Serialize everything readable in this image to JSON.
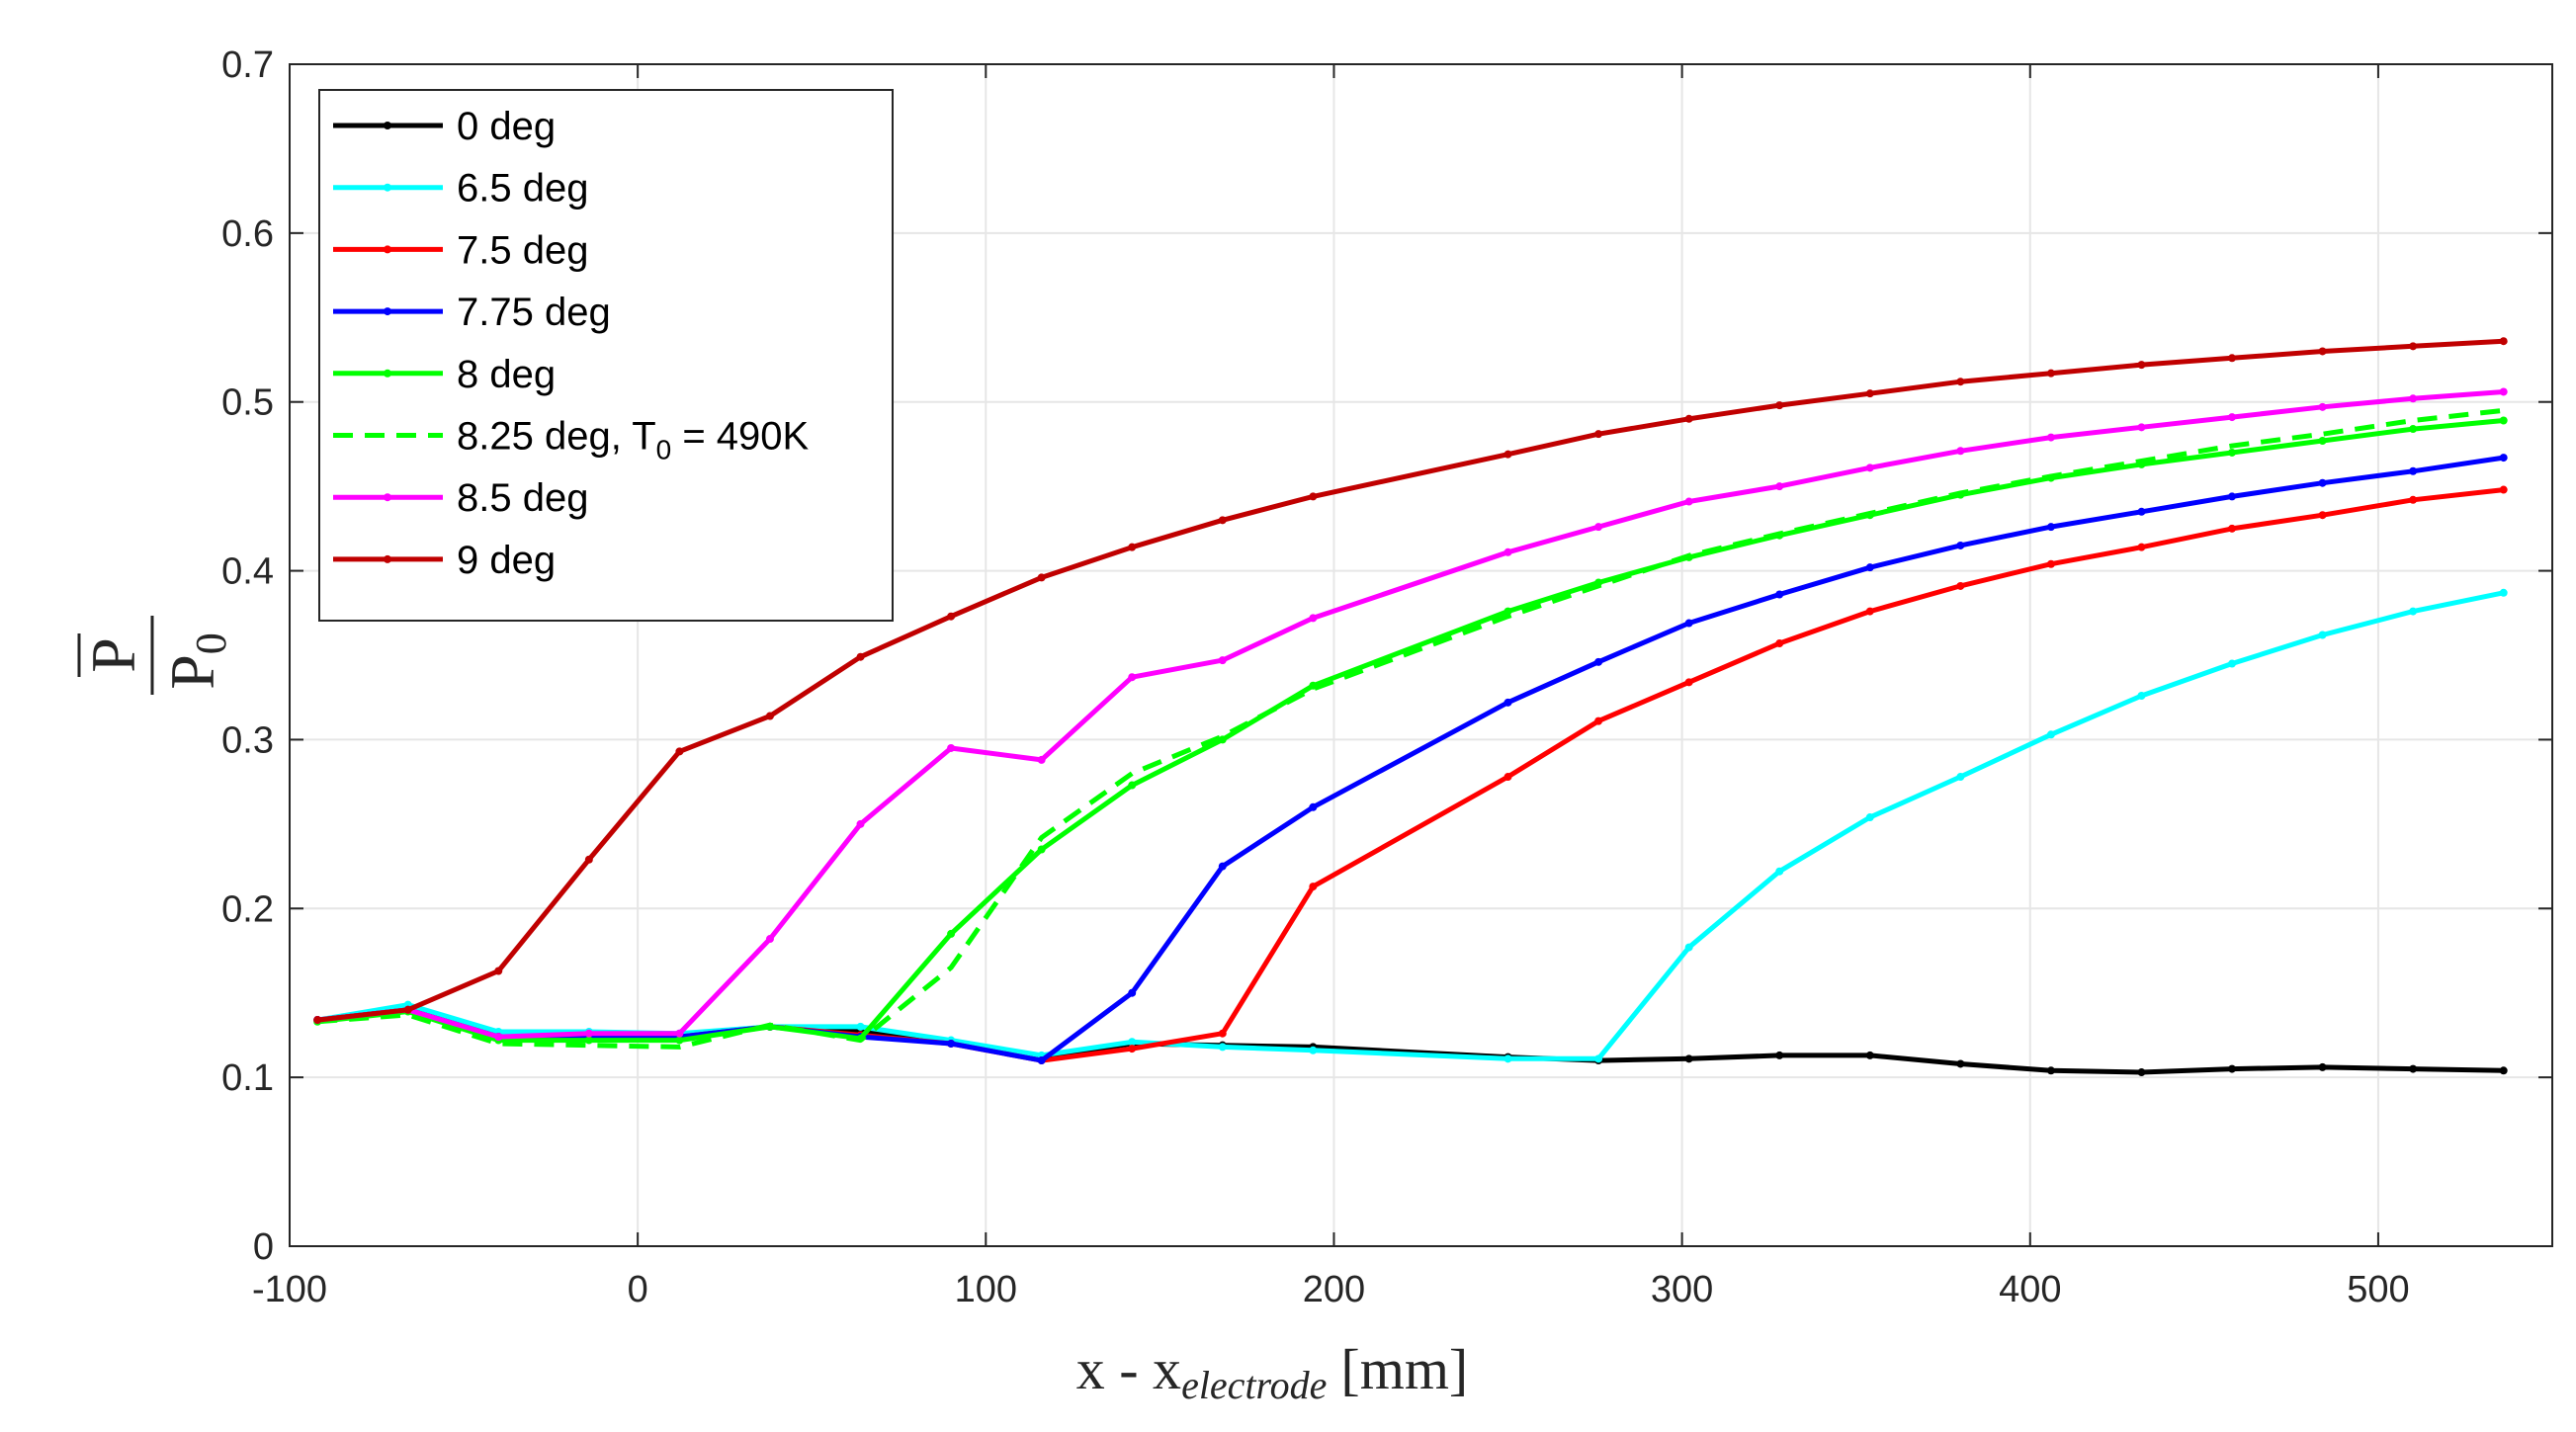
{
  "chart_data": {
    "type": "line",
    "title": "",
    "xlabel": {
      "main": "x - x",
      "subscript": "electrode",
      "unit": "[mm]"
    },
    "ylabel": {
      "numerator": "P",
      "denominator": "P",
      "denominator_subscript": "0"
    },
    "xlim": [
      -100,
      550
    ],
    "ylim": [
      0,
      0.7
    ],
    "xticks": [
      -100,
      0,
      100,
      200,
      300,
      400,
      500
    ],
    "xtick_labels": [
      "-100",
      "0",
      "100",
      "200",
      "300",
      "400",
      "500"
    ],
    "yticks": [
      0,
      0.1,
      0.2,
      0.3,
      0.4,
      0.5,
      0.6,
      0.7
    ],
    "ytick_labels": [
      "0",
      "0.1",
      "0.2",
      "0.3",
      "0.4",
      "0.5",
      "0.6",
      "0.7"
    ],
    "grid": true,
    "legend_position": "top-left",
    "series": [
      {
        "name": "0 deg",
        "color": "#000000",
        "dashed": false,
        "markers": true,
        "x": [
          -92,
          -66,
          -40,
          -14,
          12,
          38,
          64,
          90,
          116,
          142,
          168,
          194,
          250,
          276,
          302,
          328,
          354,
          380,
          406,
          432,
          458,
          484,
          510,
          536
        ],
        "y": [
          0.134,
          0.141,
          0.124,
          0.125,
          0.125,
          0.13,
          0.128,
          0.12,
          0.112,
          0.12,
          0.119,
          0.118,
          0.112,
          0.11,
          0.111,
          0.113,
          0.113,
          0.108,
          0.104,
          0.103,
          0.105,
          0.106,
          0.105,
          0.104
        ]
      },
      {
        "name": "6.5 deg",
        "color": "#00FFFF",
        "dashed": false,
        "markers": true,
        "x": [
          -92,
          -66,
          -40,
          -14,
          12,
          38,
          64,
          90,
          116,
          142,
          168,
          194,
          250,
          276,
          302,
          328,
          354,
          380,
          406,
          432,
          458,
          484,
          510,
          536
        ],
        "y": [
          0.134,
          0.143,
          0.127,
          0.127,
          0.126,
          0.13,
          0.13,
          0.122,
          0.113,
          0.121,
          0.118,
          0.116,
          0.111,
          0.111,
          0.177,
          0.222,
          0.254,
          0.278,
          0.303,
          0.326,
          0.345,
          0.362,
          0.376,
          0.387
        ]
      },
      {
        "name": "7.5 deg",
        "color": "#FF0000",
        "dashed": false,
        "markers": true,
        "x": [
          -92,
          -66,
          -40,
          -14,
          12,
          38,
          64,
          90,
          116,
          142,
          168,
          194,
          250,
          276,
          302,
          328,
          354,
          380,
          406,
          432,
          458,
          484,
          510,
          536
        ],
        "y": [
          0.134,
          0.14,
          0.124,
          0.124,
          0.124,
          0.13,
          0.125,
          0.12,
          0.11,
          0.117,
          0.126,
          0.213,
          0.278,
          0.311,
          0.334,
          0.357,
          0.376,
          0.391,
          0.404,
          0.414,
          0.425,
          0.433,
          0.442,
          0.448
        ]
      },
      {
        "name": "7.75 deg",
        "color": "#0000FF",
        "dashed": false,
        "markers": true,
        "x": [
          -92,
          -66,
          -40,
          -14,
          12,
          38,
          64,
          90,
          116,
          142,
          168,
          194,
          250,
          276,
          302,
          328,
          354,
          380,
          406,
          432,
          458,
          484,
          510,
          536
        ],
        "y": [
          0.134,
          0.14,
          0.124,
          0.124,
          0.124,
          0.13,
          0.124,
          0.12,
          0.11,
          0.15,
          0.225,
          0.26,
          0.322,
          0.346,
          0.369,
          0.386,
          0.402,
          0.415,
          0.426,
          0.435,
          0.444,
          0.452,
          0.459,
          0.467
        ]
      },
      {
        "name": "8 deg",
        "color": "#00FF00",
        "dashed": false,
        "markers": true,
        "x": [
          -92,
          -66,
          -40,
          -14,
          12,
          38,
          64,
          90,
          116,
          142,
          168,
          194,
          250,
          276,
          302,
          328,
          354,
          380,
          406,
          432,
          458,
          484,
          510,
          536
        ],
        "y": [
          0.133,
          0.139,
          0.122,
          0.122,
          0.122,
          0.13,
          0.123,
          0.185,
          0.235,
          0.273,
          0.3,
          0.332,
          0.376,
          0.393,
          0.408,
          0.421,
          0.433,
          0.445,
          0.455,
          0.463,
          0.47,
          0.477,
          0.484,
          0.489
        ]
      },
      {
        "name": "8.25 deg, T",
        "name_subscript": "0",
        "name_suffix": " = 490K",
        "color": "#00FF00",
        "dashed": true,
        "markers": false,
        "x": [
          -92,
          -66,
          -40,
          -14,
          12,
          38,
          64,
          90,
          116,
          142,
          168,
          194,
          250,
          276,
          302,
          328,
          354,
          380,
          406,
          432,
          458,
          484,
          510,
          536
        ],
        "y": [
          0.133,
          0.137,
          0.12,
          0.119,
          0.118,
          0.131,
          0.122,
          0.165,
          0.242,
          0.28,
          0.302,
          0.33,
          0.373,
          0.391,
          0.409,
          0.422,
          0.434,
          0.446,
          0.456,
          0.465,
          0.474,
          0.481,
          0.489,
          0.495
        ]
      },
      {
        "name": "8.5 deg",
        "color": "#FF00FF",
        "dashed": false,
        "markers": true,
        "x": [
          -92,
          -66,
          -40,
          -14,
          12,
          38,
          64,
          90,
          116,
          142,
          168,
          194,
          250,
          276,
          302,
          328,
          354,
          380,
          406,
          432,
          458,
          484,
          510,
          536
        ],
        "y": [
          0.134,
          0.14,
          0.124,
          0.126,
          0.126,
          0.182,
          0.25,
          0.295,
          0.288,
          0.337,
          0.347,
          0.372,
          0.411,
          0.426,
          0.441,
          0.45,
          0.461,
          0.471,
          0.479,
          0.485,
          0.491,
          0.497,
          0.502,
          0.506
        ]
      },
      {
        "name": "9 deg",
        "color": "#C00000",
        "dashed": false,
        "markers": true,
        "x": [
          -92,
          -66,
          -40,
          -14,
          12,
          38,
          64,
          90,
          116,
          142,
          168,
          194,
          250,
          276,
          302,
          328,
          354,
          380,
          406,
          432,
          458,
          484,
          510,
          536
        ],
        "y": [
          0.134,
          0.14,
          0.163,
          0.229,
          0.293,
          0.314,
          0.349,
          0.373,
          0.396,
          0.414,
          0.43,
          0.444,
          0.469,
          0.481,
          0.49,
          0.498,
          0.505,
          0.512,
          0.517,
          0.522,
          0.526,
          0.53,
          0.533,
          0.536
        ]
      }
    ]
  }
}
